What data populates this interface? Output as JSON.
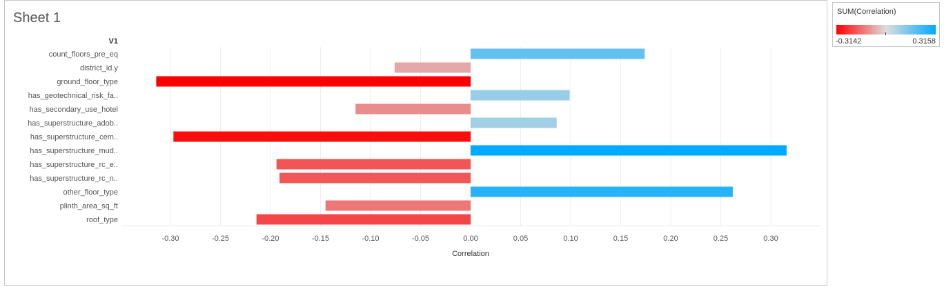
{
  "sheet": {
    "title": "Sheet 1"
  },
  "legend": {
    "title": "SUM(Correlation)",
    "min_label": "-0.3142",
    "max_label": "0.3158",
    "min_color": "#ff0000",
    "mid_color": "#dddddd",
    "max_color": "#00aaff"
  },
  "chart_data": {
    "type": "bar",
    "orientation": "horizontal",
    "row_header": "V1",
    "xlabel": "Correlation",
    "xlim": [
      -0.345,
      0.345
    ],
    "xticks": [
      -0.3,
      -0.25,
      -0.2,
      -0.15,
      -0.1,
      -0.05,
      0.0,
      0.05,
      0.1,
      0.15,
      0.2,
      0.25,
      0.3
    ],
    "xtick_labels": [
      "-0.30",
      "-0.25",
      "-0.20",
      "-0.15",
      "-0.10",
      "-0.05",
      "0.00",
      "0.05",
      "0.10",
      "0.15",
      "0.20",
      "0.25",
      "0.30"
    ],
    "grid": true,
    "categories": [
      "count_floors_pre_eq",
      "district_id.y",
      "ground_floor_type",
      "has_geotechnical_risk_fa..",
      "has_secondary_use_hotel",
      "has_superstructure_adob..",
      "has_superstructure_cem..",
      "has_superstructure_mud..",
      "has_superstructure_rc_e..",
      "has_superstructure_rc_n..",
      "other_floor_type",
      "plinth_area_sq_ft",
      "roof_type"
    ],
    "values": [
      0.174,
      -0.076,
      -0.3142,
      0.099,
      -0.115,
      0.086,
      -0.297,
      0.3158,
      -0.194,
      -0.191,
      0.262,
      -0.145,
      -0.214
    ]
  }
}
